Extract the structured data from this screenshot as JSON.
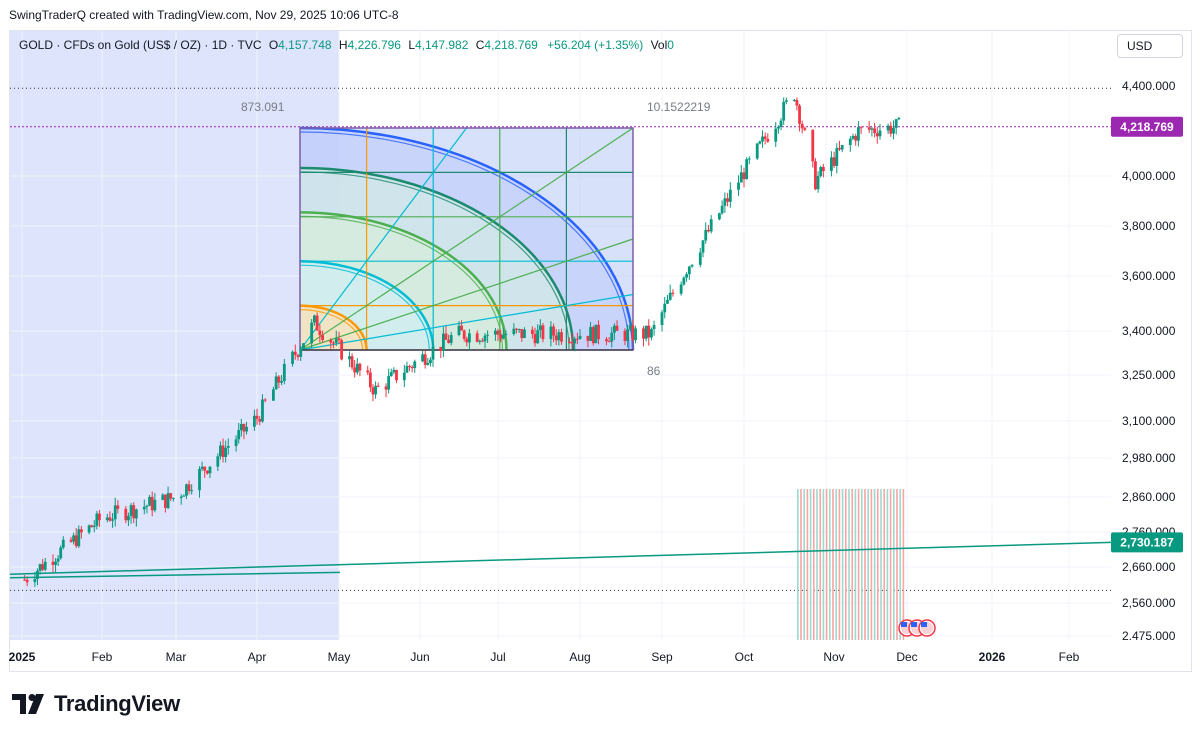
{
  "credit": "SwingTraderQ created with TradingView.com, Nov 29, 2025 10:06 UTC-8",
  "legend": {
    "symbol": "GOLD · CFDs on Gold (US$ / OZ) · 1D · TVC",
    "o_label": "O",
    "o_value": "4,157.748",
    "h_label": "H",
    "h_value": "4,226.796",
    "l_label": "L",
    "l_value": "4,147.982",
    "c_label": "C",
    "c_value": "4,218.769",
    "change": "+56.204 (+1.35%)",
    "vol_label": "Vol",
    "vol_value": "0"
  },
  "currency_button": "USD",
  "footer_logo_text": "TradingView",
  "colors": {
    "up": "#089981",
    "down": "#f23645",
    "shade": "#dbe3fb",
    "price_tag": "#9c27b0",
    "trend_tag": "#089981"
  },
  "chart_data": {
    "type": "candlestick",
    "symbol": "GOLD",
    "y_ticks": [
      4400,
      4218.769,
      4000,
      3800,
      3600,
      3400,
      3250,
      3100,
      2980,
      2860,
      2760,
      2730.187,
      2660,
      2560,
      2475
    ],
    "y_tick_labels": [
      "4,400.000",
      "4,218.769",
      "4,000.000",
      "3,800.000",
      "3,600.000",
      "3,400.000",
      "3,250.000",
      "3,100.000",
      "2,980.000",
      "2,860.000",
      "2,760.000",
      "2,730.187",
      "2,660.000",
      "2,560.000",
      "2.475.000"
    ],
    "x_ticks": [
      "2025",
      "Feb",
      "Mar",
      "Apr",
      "May",
      "Jun",
      "Jul",
      "Aug",
      "Sep",
      "Oct",
      "Nov",
      "Dec",
      "2026",
      "Feb"
    ],
    "last_price": 4218.769,
    "trendline_last_value": 2730.187,
    "annotations": [
      "873.091",
      "10.1522219",
      "86"
    ],
    "key_points": [
      {
        "date": "2025-01-02",
        "close": 2625
      },
      {
        "date": "2025-02-01",
        "close": 2800
      },
      {
        "date": "2025-03-01",
        "close": 2860
      },
      {
        "date": "2025-04-01",
        "close": 3110
      },
      {
        "date": "2025-04-22",
        "close": 3430
      },
      {
        "date": "2025-05-15",
        "close": 3200
      },
      {
        "date": "2025-06-15",
        "close": 3390
      },
      {
        "date": "2025-08-28",
        "close": 3390
      },
      {
        "date": "2025-10-20",
        "close": 4370
      },
      {
        "date": "2025-10-28",
        "close": 3980
      },
      {
        "date": "2025-11-13",
        "close": 4200
      },
      {
        "date": "2025-11-28",
        "close": 4218.769
      }
    ]
  }
}
